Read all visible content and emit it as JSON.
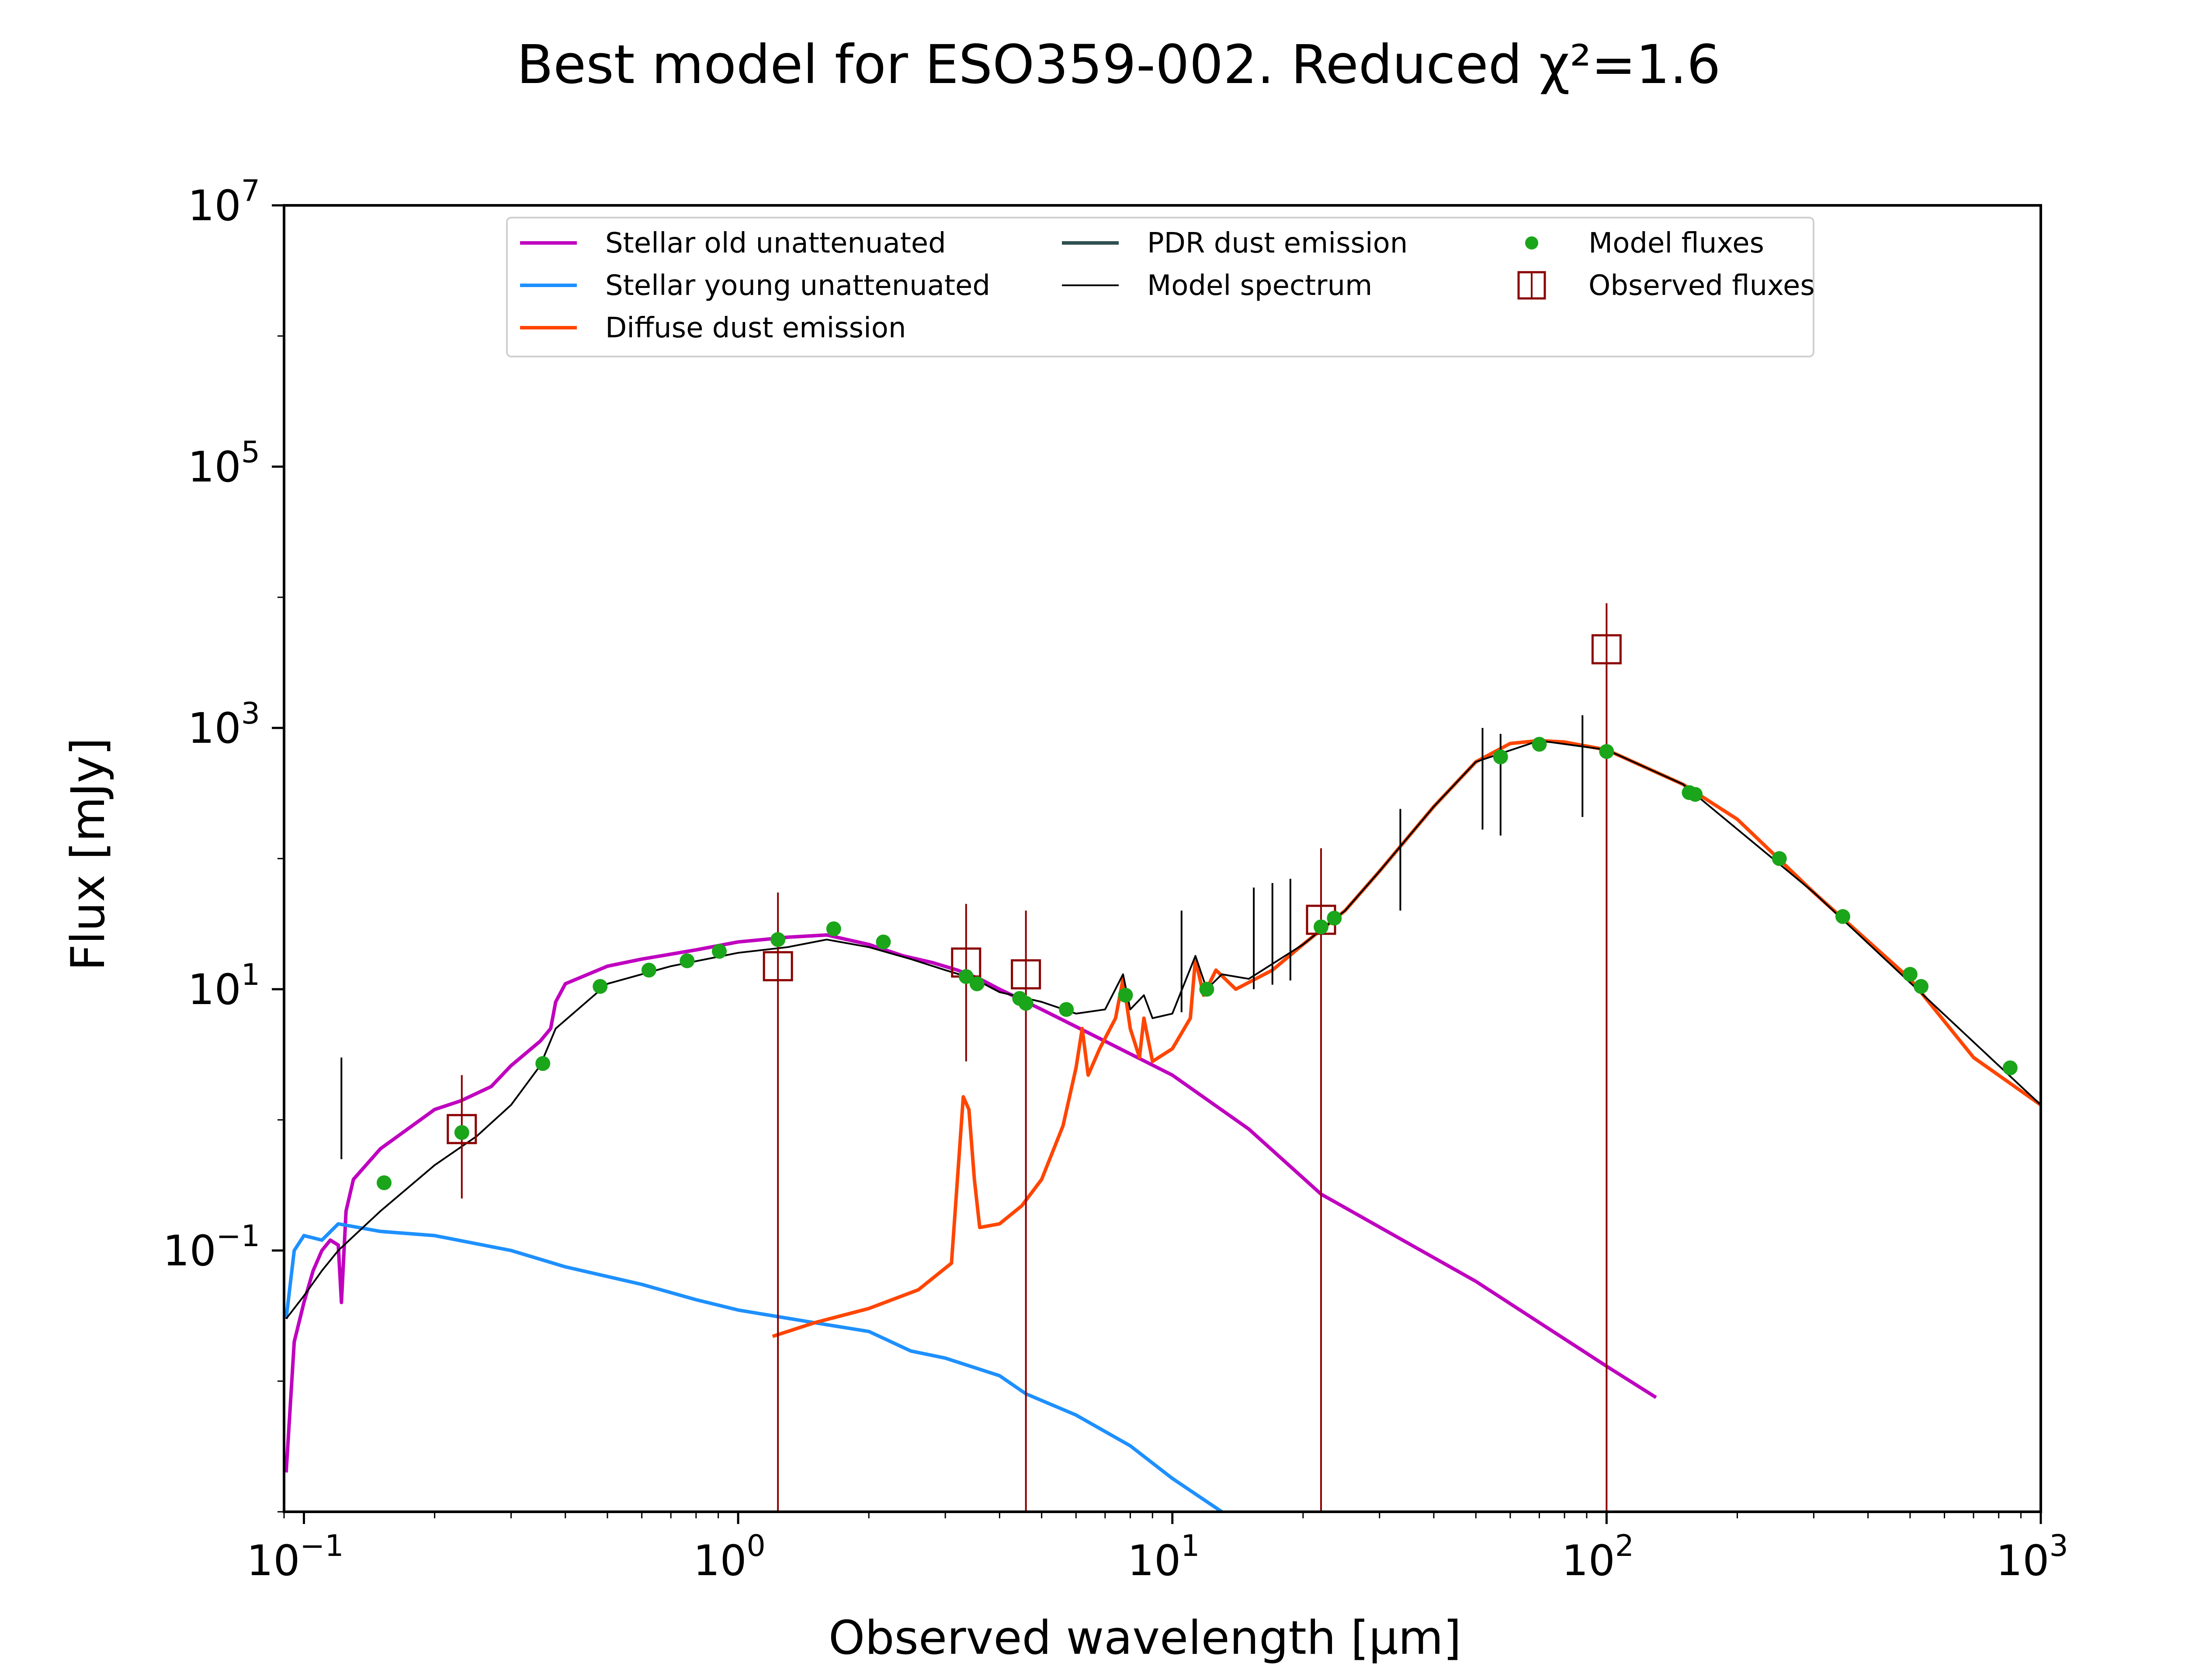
{
  "chart_data": {
    "type": "line",
    "title": "Best model for ESO359-002. Reduced χ²=1.6",
    "xlabel": "Observed wavelength [μm]",
    "ylabel": "Flux [mJy]",
    "xscale": "log",
    "yscale": "log",
    "xlim": [
      0.09,
      1000
    ],
    "ylim": [
      0.001,
      10000000
    ],
    "x_ticks": [
      {
        "value": 0.1,
        "label": "10^-1"
      },
      {
        "value": 1,
        "label": "10^0"
      },
      {
        "value": 10,
        "label": "10^1"
      },
      {
        "value": 100,
        "label": "10^2"
      },
      {
        "value": 1000,
        "label": "10^3"
      }
    ],
    "y_ticks": [
      {
        "value": 0.1,
        "label": "10^-1"
      },
      {
        "value": 10,
        "label": "10^1"
      },
      {
        "value": 1000,
        "label": "10^3"
      },
      {
        "value": 100000,
        "label": "10^5"
      },
      {
        "value": 10000000,
        "label": "10^7"
      }
    ],
    "legend_position": "top-center",
    "legend_entries": [
      {
        "label": "Stellar old unattenuated",
        "color": "#BF00BF",
        "kind": "line"
      },
      {
        "label": "Stellar young unattenuated",
        "color": "#1E90FF",
        "kind": "line"
      },
      {
        "label": "Diffuse dust emission",
        "color": "#FF4500",
        "kind": "line"
      },
      {
        "label": "PDR dust emission",
        "color": "#2F4F4F",
        "kind": "line"
      },
      {
        "label": "Model spectrum",
        "color": "#000000",
        "kind": "thin-line"
      },
      {
        "label": "Model fluxes",
        "color": "#1aa51a",
        "kind": "dot"
      },
      {
        "label": "Observed fluxes",
        "color": "#8B0000",
        "kind": "square"
      }
    ],
    "series": [
      {
        "name": "Stellar old unattenuated",
        "color": "#BF00BF",
        "points": [
          [
            0.091,
            0.002
          ],
          [
            0.095,
            0.02
          ],
          [
            0.1,
            0.04
          ],
          [
            0.105,
            0.07
          ],
          [
            0.11,
            0.1
          ],
          [
            0.115,
            0.12
          ],
          [
            0.12,
            0.11
          ],
          [
            0.122,
            0.04
          ],
          [
            0.125,
            0.2
          ],
          [
            0.13,
            0.35
          ],
          [
            0.15,
            0.6
          ],
          [
            0.2,
            1.2
          ],
          [
            0.23,
            1.4
          ],
          [
            0.27,
            1.8
          ],
          [
            0.3,
            2.6
          ],
          [
            0.35,
            4
          ],
          [
            0.37,
            5
          ],
          [
            0.38,
            8
          ],
          [
            0.4,
            11
          ],
          [
            0.5,
            15
          ],
          [
            0.6,
            17
          ],
          [
            0.8,
            20
          ],
          [
            1.0,
            23
          ],
          [
            1.3,
            25
          ],
          [
            1.6,
            26
          ],
          [
            2.0,
            22
          ],
          [
            2.4,
            18
          ],
          [
            2.8,
            16
          ],
          [
            3.2,
            14
          ],
          [
            3.6,
            12
          ],
          [
            4.0,
            10
          ],
          [
            5.0,
            7
          ],
          [
            7.0,
            4
          ],
          [
            10.0,
            2.2
          ],
          [
            15.0,
            0.85
          ],
          [
            22.0,
            0.27
          ],
          [
            50.0,
            0.058
          ],
          [
            100.0,
            0.013
          ],
          [
            130.0,
            0.0075
          ]
        ]
      },
      {
        "name": "Stellar young unattenuated",
        "color": "#1E90FF",
        "points": [
          [
            0.091,
            0.03
          ],
          [
            0.095,
            0.1
          ],
          [
            0.1,
            0.13
          ],
          [
            0.11,
            0.12
          ],
          [
            0.12,
            0.16
          ],
          [
            0.15,
            0.14
          ],
          [
            0.2,
            0.13
          ],
          [
            0.3,
            0.1
          ],
          [
            0.4,
            0.075
          ],
          [
            0.6,
            0.055
          ],
          [
            0.8,
            0.042
          ],
          [
            1.0,
            0.035
          ],
          [
            1.5,
            0.028
          ],
          [
            2.0,
            0.024
          ],
          [
            2.5,
            0.017
          ],
          [
            3.0,
            0.015
          ],
          [
            4.0,
            0.011
          ],
          [
            4.6,
            0.008
          ],
          [
            6.0,
            0.0055
          ],
          [
            8.0,
            0.0032
          ],
          [
            10.0,
            0.0018
          ],
          [
            13.0,
            0.001
          ]
        ]
      },
      {
        "name": "Diffuse dust emission",
        "color": "#FF4500",
        "points": [
          [
            1.2,
            0.022
          ],
          [
            1.5,
            0.028
          ],
          [
            2.0,
            0.036
          ],
          [
            2.6,
            0.05
          ],
          [
            3.1,
            0.08
          ],
          [
            3.3,
            1.5
          ],
          [
            3.4,
            1.2
          ],
          [
            3.5,
            0.35
          ],
          [
            3.6,
            0.15
          ],
          [
            4.0,
            0.16
          ],
          [
            4.5,
            0.22
          ],
          [
            5.0,
            0.35
          ],
          [
            5.6,
            0.9
          ],
          [
            6.0,
            2.5
          ],
          [
            6.2,
            5
          ],
          [
            6.4,
            2.2
          ],
          [
            6.8,
            3.5
          ],
          [
            7.4,
            6
          ],
          [
            7.7,
            12
          ],
          [
            8.0,
            5
          ],
          [
            8.4,
            3
          ],
          [
            8.6,
            6
          ],
          [
            9.0,
            2.8
          ],
          [
            10.0,
            3.5
          ],
          [
            11.0,
            6
          ],
          [
            11.3,
            17
          ],
          [
            11.8,
            9
          ],
          [
            12.6,
            14
          ],
          [
            14.0,
            10
          ],
          [
            17.0,
            14
          ],
          [
            20.0,
            22
          ],
          [
            25.0,
            40
          ],
          [
            30.0,
            80
          ],
          [
            40.0,
            250
          ],
          [
            50.0,
            550
          ],
          [
            60.0,
            760
          ],
          [
            70.0,
            800
          ],
          [
            80.0,
            780
          ],
          [
            100.0,
            680
          ],
          [
            150.0,
            370
          ],
          [
            200.0,
            200
          ],
          [
            300.0,
            55
          ],
          [
            500.0,
            12
          ],
          [
            700.0,
            3
          ],
          [
            1000.0,
            1.3
          ]
        ]
      },
      {
        "name": "Model spectrum",
        "color": "#000000",
        "points": [
          [
            0.091,
            0.03
          ],
          [
            0.1,
            0.045
          ],
          [
            0.11,
            0.07
          ],
          [
            0.12,
            0.1
          ],
          [
            0.15,
            0.2
          ],
          [
            0.2,
            0.45
          ],
          [
            0.25,
            0.75
          ],
          [
            0.3,
            1.3
          ],
          [
            0.35,
            2.6
          ],
          [
            0.38,
            5
          ],
          [
            0.5,
            11
          ],
          [
            0.7,
            15
          ],
          [
            1.0,
            19
          ],
          [
            1.3,
            21
          ],
          [
            1.6,
            24
          ],
          [
            2.0,
            21
          ],
          [
            2.5,
            17
          ],
          [
            3.0,
            14
          ],
          [
            3.5,
            12
          ],
          [
            4.0,
            9.5
          ],
          [
            5.0,
            8
          ],
          [
            6.0,
            6.5
          ],
          [
            7.0,
            7
          ],
          [
            7.7,
            13
          ],
          [
            8.0,
            7
          ],
          [
            8.6,
            9
          ],
          [
            9.0,
            6
          ],
          [
            10.0,
            6.5
          ],
          [
            11.3,
            18
          ],
          [
            12.0,
            10
          ],
          [
            13.0,
            13
          ],
          [
            15.0,
            12
          ],
          [
            20.0,
            22
          ],
          [
            25.0,
            40
          ],
          [
            30.0,
            80
          ],
          [
            40.0,
            250
          ],
          [
            50.0,
            550
          ],
          [
            70.0,
            800
          ],
          [
            100.0,
            680
          ],
          [
            150.0,
            370
          ],
          [
            300.0,
            55
          ],
          [
            1000.0,
            1.3
          ]
        ]
      }
    ],
    "model_spikes": [
      [
        0.122,
        3
      ],
      [
        10.5,
        40
      ],
      [
        15.4,
        60
      ],
      [
        17.0,
        65
      ],
      [
        18.7,
        70
      ],
      [
        33.5,
        240
      ],
      [
        51.8,
        1000
      ],
      [
        57.0,
        900
      ],
      [
        88.0,
        1250
      ]
    ],
    "model_fluxes": [
      [
        0.153,
        0.33
      ],
      [
        0.231,
        0.8
      ],
      [
        0.355,
        2.7
      ],
      [
        0.481,
        10.5
      ],
      [
        0.623,
        14
      ],
      [
        0.763,
        16.5
      ],
      [
        0.905,
        19.5
      ],
      [
        1.235,
        24
      ],
      [
        1.66,
        29
      ],
      [
        2.16,
        23
      ],
      [
        3.35,
        12.5
      ],
      [
        3.55,
        11
      ],
      [
        4.45,
        8.5
      ],
      [
        4.6,
        7.8
      ],
      [
        5.7,
        7
      ],
      [
        7.8,
        9
      ],
      [
        12.0,
        10
      ],
      [
        22.0,
        30
      ],
      [
        23.6,
        35
      ],
      [
        57.0,
        600
      ],
      [
        70.0,
        750
      ],
      [
        100.0,
        660
      ],
      [
        155.0,
        320
      ],
      [
        160.0,
        310
      ],
      [
        250.0,
        100
      ],
      [
        350.0,
        36
      ],
      [
        500.0,
        13
      ],
      [
        530.0,
        10.5
      ],
      [
        850.0,
        2.5
      ]
    ],
    "observed_fluxes": [
      {
        "x": 0.231,
        "y": 0.85,
        "err_lo": 0.25,
        "err_hi": 2.2
      },
      {
        "x": 1.235,
        "y": 15,
        "err_lo": 0.001,
        "err_hi": 55
      },
      {
        "x": 3.35,
        "y": 16,
        "err_lo": 2.8,
        "err_hi": 45
      },
      {
        "x": 4.6,
        "y": 13,
        "err_lo": 0.001,
        "err_hi": 40
      },
      {
        "x": 22.0,
        "y": 34,
        "err_lo": 0.001,
        "err_hi": 120
      },
      {
        "x": 100.0,
        "y": 4000,
        "err_lo": 0.001,
        "err_hi": 9000
      }
    ]
  }
}
